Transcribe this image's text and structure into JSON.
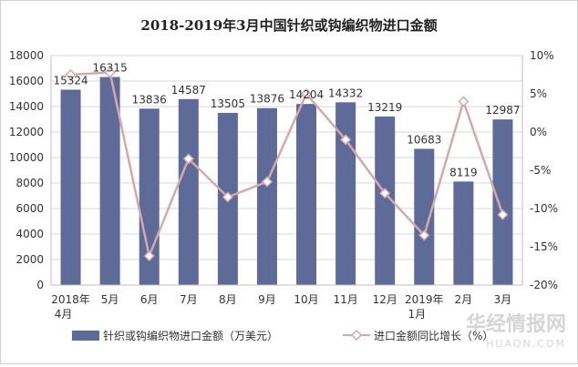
{
  "chart_data": {
    "type": "bar",
    "title": "2018-2019年3月中国针织或钩编织物进口金额",
    "categories": [
      [
        "2018年",
        "4月"
      ],
      [
        "5月"
      ],
      [
        "6月"
      ],
      [
        "7月"
      ],
      [
        "8月"
      ],
      [
        "9月"
      ],
      [
        "10月"
      ],
      [
        "11月"
      ],
      [
        "12月"
      ],
      [
        "2019年",
        "1月"
      ],
      [
        "2月"
      ],
      [
        "3月"
      ]
    ],
    "series": [
      {
        "name": "针织或钩编织物进口金额（万美元）",
        "kind": "bar",
        "axis": "left",
        "color": "#5e6a97",
        "values": [
          15324,
          16315,
          13836,
          14587,
          13505,
          13876,
          14204,
          14332,
          13219,
          10683,
          8119,
          12987
        ],
        "labels": [
          "15324",
          "16315",
          "13836",
          "14587",
          "13505",
          "13876",
          "14204",
          "14332",
          "13219",
          "10683",
          "8119",
          "12987"
        ]
      },
      {
        "name": "进口金额同比增长（%）",
        "kind": "line",
        "axis": "right",
        "color": "#d4a9ab",
        "values": [
          7.5,
          7.8,
          -16.2,
          -3.5,
          -8.5,
          -6.5,
          5.0,
          -1.0,
          -8.0,
          -13.5,
          4.0,
          -10.8
        ]
      }
    ],
    "y_left": {
      "min": 0,
      "max": 18000,
      "step": 2000,
      "tick_labels": [
        "0",
        "2000",
        "4000",
        "6000",
        "8000",
        "10000",
        "12000",
        "14000",
        "16000",
        "18000"
      ]
    },
    "y_right": {
      "min": -20,
      "max": 10,
      "step": 5,
      "tick_labels": [
        "-20%",
        "-15%",
        "-10%",
        "-5%",
        "0%",
        "5%",
        "10%"
      ]
    },
    "legend_position": "bottom",
    "grid": true
  },
  "watermark": {
    "text": "华经情报网",
    "subtext": "HUAON.COM"
  }
}
